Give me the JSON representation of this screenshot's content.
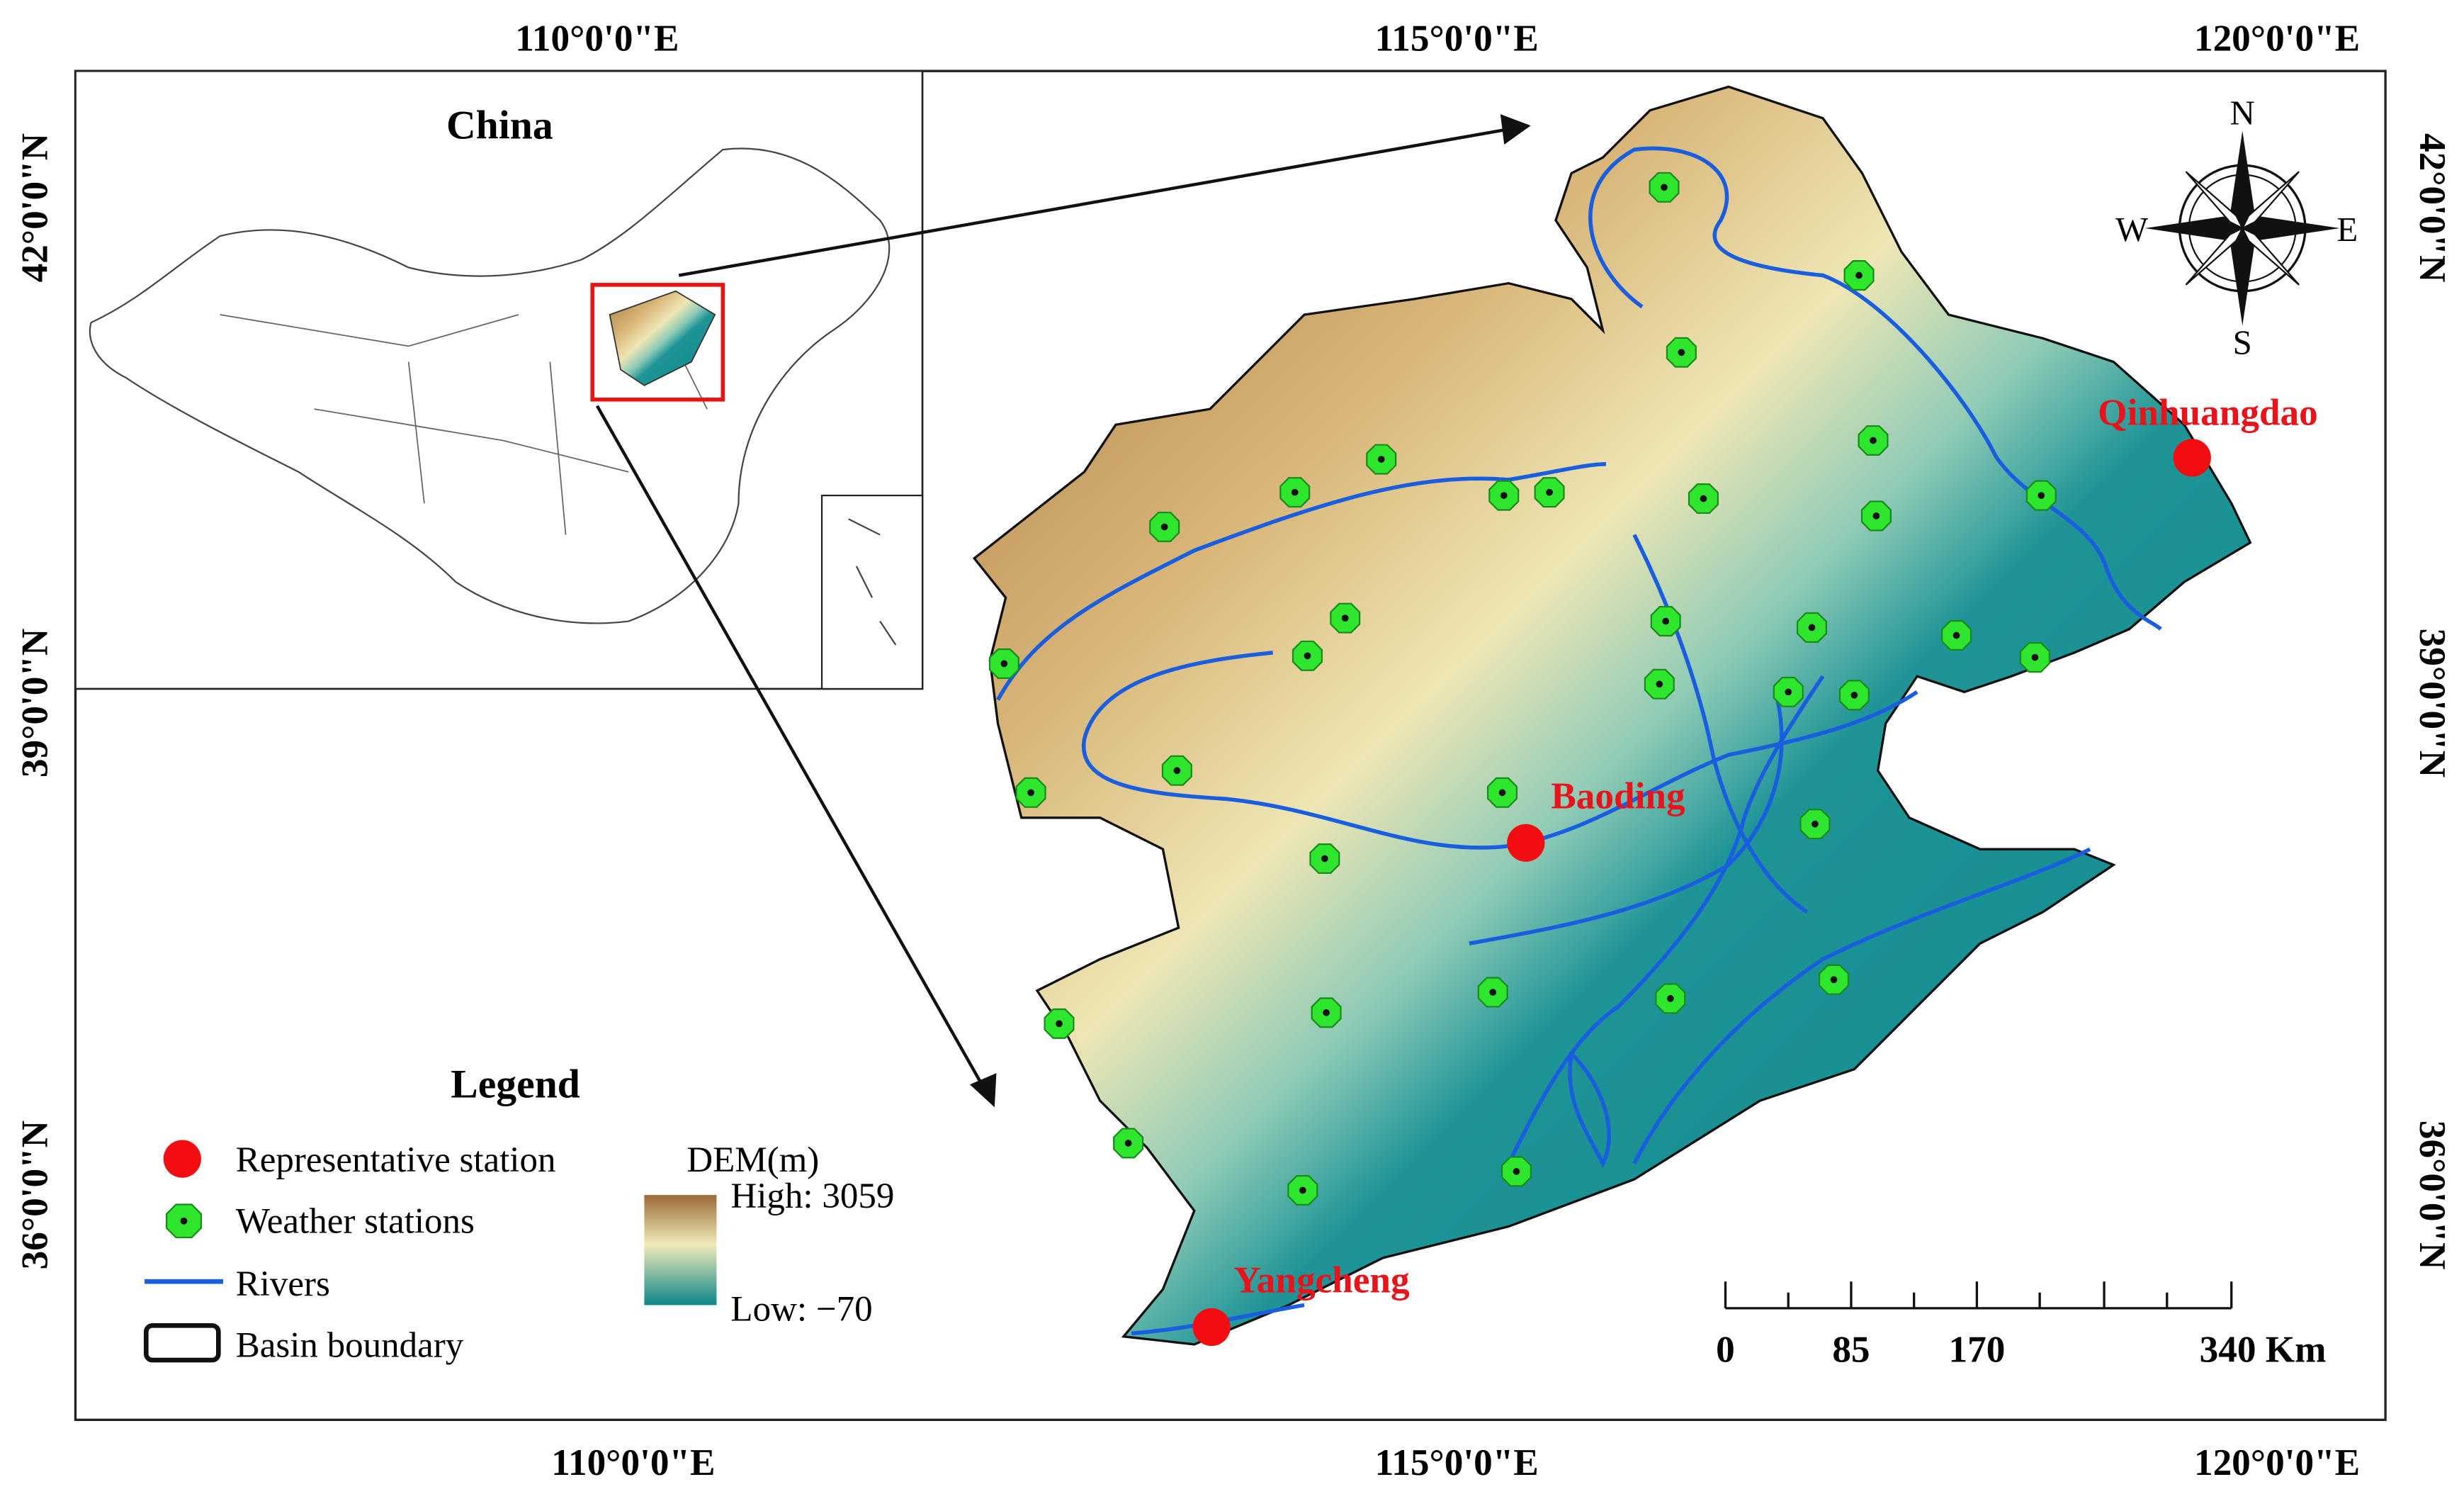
{
  "map": {
    "axes": {
      "top": [
        "110°0'0\"E",
        "115°0'0\"E",
        "120°0'0\"E"
      ],
      "bottom": [
        "110°0'0\"E",
        "115°0'0\"E",
        "120°0'0\"E"
      ],
      "left": [
        "42°0'0\"N",
        "39°0'0\"N",
        "36°0'0\"N"
      ],
      "right": [
        "42°0'0\"N",
        "39°0'0\"N",
        "36°0'0\"N"
      ]
    },
    "inset": {
      "title": "China"
    },
    "legend": {
      "title": "Legend",
      "items": [
        "Representative station",
        "Weather stations",
        "Rivers",
        "Basin boundary"
      ]
    },
    "dem": {
      "title": "DEM(m)",
      "high": "High: 3059",
      "low": "Low: −70"
    },
    "cities": [
      "Qinhuangdao",
      "Baoding",
      "Yangcheng"
    ],
    "compass": [
      "N",
      "E",
      "S",
      "W"
    ],
    "scale": {
      "labels": [
        "0",
        "85",
        "170",
        "340 Km"
      ]
    }
  }
}
